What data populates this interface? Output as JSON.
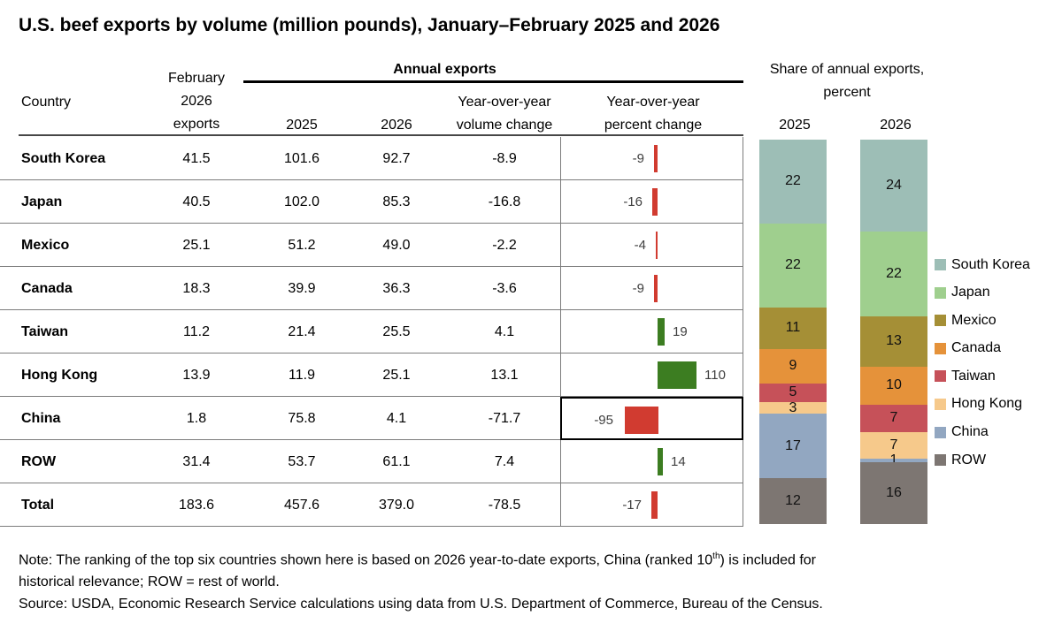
{
  "title": "U.S. beef exports by volume (million pounds), January–February 2025 and 2026",
  "header": {
    "country": "Country",
    "feb_exports": "February\n2026\nexports",
    "annual_exports": "Annual exports",
    "y2025": "2025",
    "y2026": "2026",
    "vol_change": "Year-over-year\nvolume change",
    "pct_change": "Year-over-year\npercent change",
    "share": "Share of annual exports,\npercent",
    "share_2025": "2025",
    "share_2026": "2026"
  },
  "rows": [
    {
      "country": "South Korea",
      "feb": "41.5",
      "v2025": "101.6",
      "v2026": "92.7",
      "vol_change": "-8.9",
      "pct_change": -9,
      "highlight": false
    },
    {
      "country": "Japan",
      "feb": "40.5",
      "v2025": "102.0",
      "v2026": "85.3",
      "vol_change": "-16.8",
      "pct_change": -16,
      "highlight": false
    },
    {
      "country": "Mexico",
      "feb": "25.1",
      "v2025": "51.2",
      "v2026": "49.0",
      "vol_change": "-2.2",
      "pct_change": -4,
      "highlight": false
    },
    {
      "country": "Canada",
      "feb": "18.3",
      "v2025": "39.9",
      "v2026": "36.3",
      "vol_change": "-3.6",
      "pct_change": -9,
      "highlight": false
    },
    {
      "country": "Taiwan",
      "feb": "11.2",
      "v2025": "21.4",
      "v2026": "25.5",
      "vol_change": "4.1",
      "pct_change": 19,
      "highlight": false
    },
    {
      "country": "Hong Kong",
      "feb": "13.9",
      "v2025": "11.9",
      "v2026": "25.1",
      "vol_change": "13.1",
      "pct_change": 110,
      "highlight": false
    },
    {
      "country": "China",
      "feb": "1.8",
      "v2025": "75.8",
      "v2026": "4.1",
      "vol_change": "-71.7",
      "pct_change": -95,
      "highlight": true
    },
    {
      "country": "ROW",
      "feb": "31.4",
      "v2025": "53.7",
      "v2026": "61.1",
      "vol_change": "7.4",
      "pct_change": 14,
      "highlight": false
    },
    {
      "country": "Total",
      "feb": "183.6",
      "v2025": "457.6",
      "v2026": "379.0",
      "vol_change": "-78.5",
      "pct_change": -17,
      "highlight": false
    }
  ],
  "mini_bar_chart": {
    "type": "bar",
    "orientation": "horizontal-diverging",
    "unit": "percent change",
    "negative_color": "#d13b30",
    "positive_color": "#3c7d21",
    "values": [
      -9,
      -16,
      -4,
      -9,
      19,
      110,
      -95,
      14,
      -17
    ]
  },
  "chart_data": {
    "type": "bar",
    "subtype": "stacked-100-percent",
    "title": "Share of annual exports, percent",
    "categories": [
      "2025",
      "2026"
    ],
    "series": [
      {
        "name": "South Korea",
        "color": "#9dbeb6",
        "values": [
          22,
          24
        ]
      },
      {
        "name": "Japan",
        "color": "#9fcf8e",
        "values": [
          22,
          22
        ]
      },
      {
        "name": "Mexico",
        "color": "#a58f36",
        "values": [
          11,
          13
        ]
      },
      {
        "name": "Canada",
        "color": "#e5923a",
        "values": [
          9,
          10
        ]
      },
      {
        "name": "Taiwan",
        "color": "#c65159",
        "values": [
          5,
          7
        ]
      },
      {
        "name": "Hong Kong",
        "color": "#f6c98b",
        "values": [
          3,
          7
        ]
      },
      {
        "name": "China",
        "color": "#92a7c1",
        "values": [
          17,
          1
        ]
      },
      {
        "name": "ROW",
        "color": "#7d7672",
        "values": [
          12,
          16
        ]
      }
    ],
    "legend_position": "right",
    "grid": false
  },
  "notes": {
    "note_pre": "Note: The ranking of the top six countries shown here is based on 2026 year-to-date exports, China (ranked 10",
    "note_sup": "th",
    "note_post": ") is included for",
    "note_line2": "historical relevance; ROW = rest of world.",
    "source": "Source: USDA, Economic Research Service calculations using data from U.S. Department of Commerce, Bureau of the Census."
  }
}
